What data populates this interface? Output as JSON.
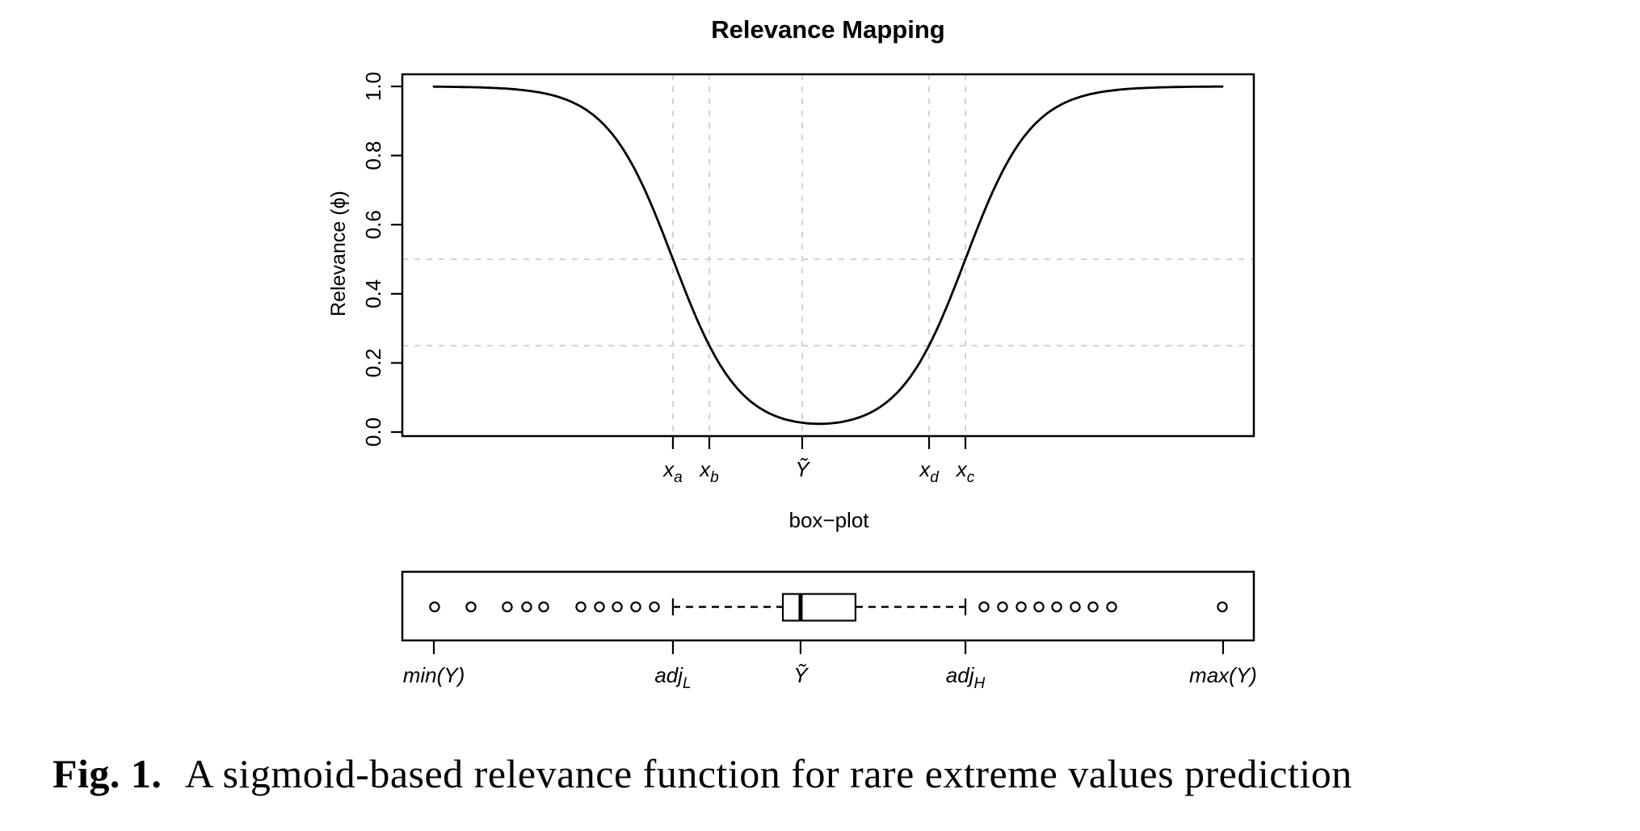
{
  "figure": {
    "caption_label": "Fig. 1.",
    "caption_text": "A sigmoid-based relevance function for rare extreme values prediction"
  },
  "colors": {
    "ink": "#000000",
    "grid": "#d2d2d2",
    "background": "#ffffff"
  },
  "chart_data": [
    {
      "type": "line",
      "title": "Relevance Mapping",
      "xlabel": "",
      "ylabel": "Relevance (ϕ)",
      "ylim": [
        0.0,
        1.0
      ],
      "grid_on": true,
      "y_ticks": [
        0.0,
        0.2,
        0.4,
        0.6,
        0.8,
        1.0
      ],
      "x_ticks": [
        {
          "base": "x",
          "sub": "a",
          "pos": 0.3178
        },
        {
          "base": "x",
          "sub": "b",
          "pos": 0.3605
        },
        {
          "base": "Ỹ",
          "sub": "",
          "pos": 0.4696
        },
        {
          "base": "x",
          "sub": "d",
          "pos": 0.6186
        },
        {
          "base": "x",
          "sub": "c",
          "pos": 0.6613
        }
      ],
      "grid": {
        "style": "dashed",
        "h_values": [
          0.25,
          0.5
        ],
        "v_positions": [
          0.3178,
          0.3605,
          0.4696,
          0.6186,
          0.6613
        ]
      },
      "curve": {
        "model": "double-sigmoid",
        "formula": "phi(u) = 1/(1+exp(k*(u-u_a))) + 1/(1+exp(-k*(u-u_c)))",
        "steepness_k": 25.73,
        "center_left": 0.3178,
        "center_right": 0.6613,
        "x_start": 0.037,
        "x_end": 0.963,
        "key_points": [
          {
            "x": "x_a",
            "phi": 0.5
          },
          {
            "x": "x_b",
            "phi": 0.25
          },
          {
            "x": "Ỹ",
            "phi": 0.03
          },
          {
            "x": "x_d",
            "phi": 0.25
          },
          {
            "x": "x_c",
            "phi": 0.5
          }
        ]
      }
    },
    {
      "type": "boxplot",
      "title": "box−plot",
      "orientation": "horizontal",
      "box": {
        "whisker_low": 0.3178,
        "q1": 0.4469,
        "median": 0.4677,
        "q3": 0.5322,
        "whisker_high": 0.6613
      },
      "outliers_low": [
        0.0379,
        0.0806,
        0.1233,
        0.1461,
        0.166,
        0.2097,
        0.2315,
        0.2524,
        0.2742,
        0.296
      ],
      "outliers_high": [
        0.6831,
        0.7049,
        0.7268,
        0.7476,
        0.7685,
        0.7903,
        0.8112,
        0.833,
        0.963
      ],
      "x_ticks": [
        {
          "base": "min(Y)",
          "sub": "",
          "pos": 0.037
        },
        {
          "base": "adj",
          "sub": "L",
          "pos": 0.3178
        },
        {
          "base": "Ỹ",
          "sub": "",
          "pos": 0.4677
        },
        {
          "base": "adj",
          "sub": "H",
          "pos": 0.6613
        },
        {
          "base": "max(Y)",
          "sub": "",
          "pos": 0.9639
        }
      ]
    }
  ]
}
